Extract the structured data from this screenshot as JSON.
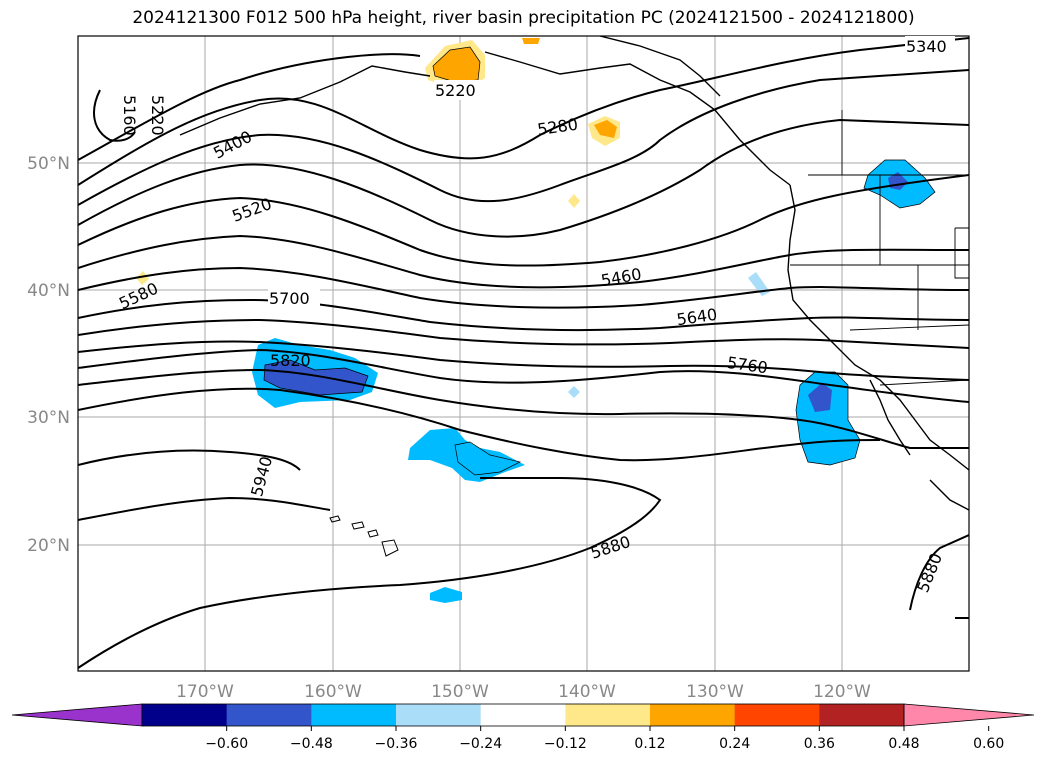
{
  "title": "2024121300 F012 500 hPa height, river basin precipitation PC (2024121500 - 2024121800)",
  "map": {
    "lat_labels": [
      "50°N",
      "40°N",
      "30°N",
      "20°N"
    ],
    "lon_labels": [
      "170°W",
      "160°W",
      "150°W",
      "140°W",
      "130°W",
      "120°W"
    ],
    "contour_labels": [
      "5340",
      "5160",
      "5220",
      "5400",
      "5220",
      "5280",
      "5520",
      "5580",
      "5460",
      "5700",
      "5640",
      "5820",
      "5760",
      "5940",
      "5880",
      "5880"
    ],
    "grid_color": "#aaaaaa"
  },
  "legend": {
    "ticks": [
      "−0.60",
      "−0.48",
      "−0.36",
      "−0.24",
      "−0.12",
      "0.12",
      "0.24",
      "0.36",
      "0.48",
      "0.60"
    ],
    "colors": [
      "#9933cc",
      "#00008b",
      "#3355cc",
      "#00bbff",
      "#aaddf8",
      "#ffffff",
      "#ffe88a",
      "#ffa500",
      "#ff4500",
      "#b22222",
      "#ff88aa"
    ],
    "extend": "both"
  }
}
